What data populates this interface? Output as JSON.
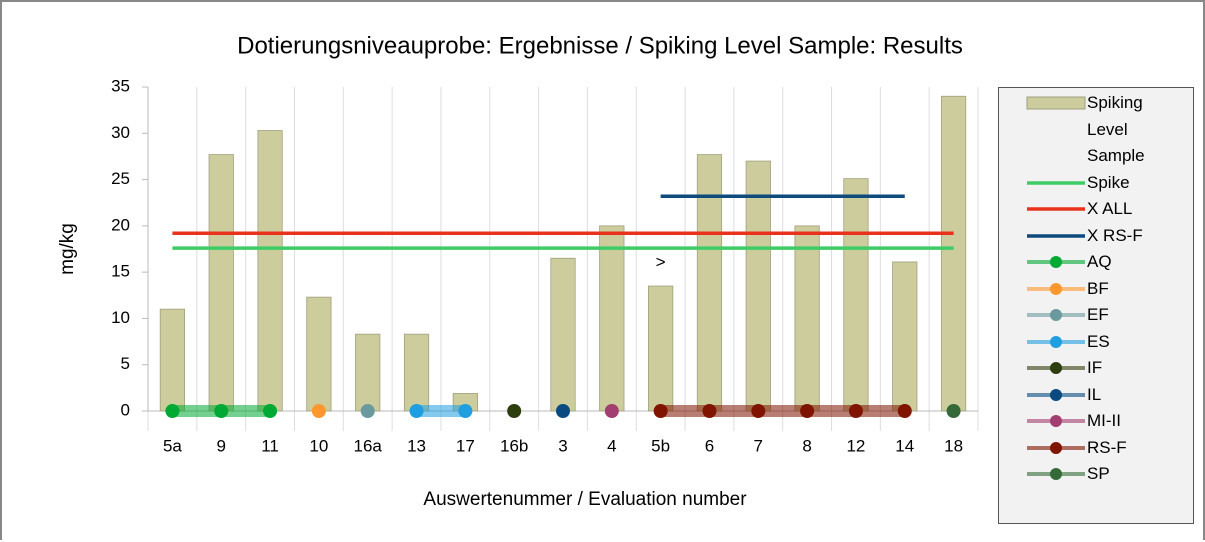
{
  "chart_data": {
    "type": "bar",
    "title": "Dotierungsniveauprobe: Ergebnisse / Spiking Level Sample: Results",
    "x_label": "Auswertenummer / Evaluation number",
    "y_label": "mg/kg",
    "categories": [
      "5a",
      "9",
      "11",
      "10",
      "16a",
      "13",
      "17",
      "16b",
      "3",
      "4",
      "5b",
      "6",
      "7",
      "8",
      "12",
      "14",
      "18"
    ],
    "ylim": [
      0,
      35
    ],
    "yticks": [
      0,
      5,
      10,
      15,
      20,
      25,
      30,
      35
    ],
    "grid": false,
    "legend": "right",
    "annotations": [
      {
        "text": ">",
        "category": 10,
        "y": 16
      }
    ],
    "series": [
      {
        "name": "Spiking Level Sample",
        "type": "bar",
        "color": "#cccc9c",
        "values": [
          11,
          27.7,
          30.3,
          12.3,
          8.3,
          8.3,
          1.9,
          null,
          16.5,
          20,
          13.5,
          27.7,
          27,
          20,
          25.1,
          16.1,
          34
        ]
      },
      {
        "name": "Spike",
        "type": "line",
        "color": "#3fcc66",
        "values": [
          17.6,
          17.6,
          17.6,
          17.6,
          17.6,
          17.6,
          17.6,
          17.6,
          17.6,
          17.6,
          17.6,
          17.6,
          17.6,
          17.6,
          17.6,
          17.6,
          17.6
        ]
      },
      {
        "name": "X ALL",
        "type": "line",
        "color": "#e8321c",
        "values": [
          19.2,
          19.2,
          19.2,
          19.2,
          19.2,
          19.2,
          19.2,
          19.2,
          19.2,
          19.2,
          19.2,
          19.2,
          19.2,
          19.2,
          19.2,
          19.2,
          19.2
        ]
      },
      {
        "name": "X RS-F",
        "type": "line",
        "color": "#0e4a7c",
        "values": [
          null,
          null,
          null,
          null,
          null,
          null,
          null,
          null,
          null,
          null,
          23.2,
          23.2,
          23.2,
          23.2,
          23.2,
          23.2,
          null
        ]
      },
      {
        "name": "AQ",
        "type": "marker-line",
        "color": "#00a933",
        "values": [
          0,
          0,
          0,
          null,
          null,
          null,
          null,
          null,
          null,
          null,
          null,
          null,
          null,
          null,
          null,
          null,
          null
        ]
      },
      {
        "name": "BF",
        "type": "marker-line",
        "color": "#ff972f",
        "values": [
          null,
          null,
          null,
          0,
          null,
          null,
          null,
          null,
          null,
          null,
          null,
          null,
          null,
          null,
          null,
          null,
          null
        ]
      },
      {
        "name": "EF",
        "type": "marker-line",
        "color": "#6b9a9e",
        "values": [
          null,
          null,
          null,
          null,
          0,
          null,
          null,
          null,
          null,
          null,
          null,
          null,
          null,
          null,
          null,
          null,
          null
        ]
      },
      {
        "name": "ES",
        "type": "marker-line",
        "color": "#1f9fe0",
        "values": [
          null,
          null,
          null,
          null,
          null,
          0,
          0,
          null,
          null,
          null,
          null,
          null,
          null,
          null,
          null,
          null,
          null
        ]
      },
      {
        "name": "IF",
        "type": "marker-line",
        "color": "#2e3d0e",
        "values": [
          null,
          null,
          null,
          null,
          null,
          null,
          null,
          0,
          null,
          null,
          null,
          null,
          null,
          null,
          null,
          null,
          null
        ]
      },
      {
        "name": "IL",
        "type": "marker-line",
        "color": "#0a4a80",
        "values": [
          null,
          null,
          null,
          null,
          null,
          null,
          null,
          null,
          0,
          null,
          null,
          null,
          null,
          null,
          null,
          null,
          null
        ]
      },
      {
        "name": "MI-II",
        "type": "marker-line",
        "color": "#a33e70",
        "values": [
          null,
          null,
          null,
          null,
          null,
          null,
          null,
          null,
          null,
          0,
          null,
          null,
          null,
          null,
          null,
          null,
          null
        ]
      },
      {
        "name": "RS-F",
        "type": "marker-line",
        "color": "#7f1400",
        "values": [
          null,
          null,
          null,
          null,
          null,
          null,
          null,
          null,
          null,
          null,
          0,
          0,
          0,
          0,
          0,
          0,
          null
        ]
      },
      {
        "name": "SP",
        "type": "marker-line",
        "color": "#356a38",
        "values": [
          null,
          null,
          null,
          null,
          null,
          null,
          null,
          null,
          null,
          null,
          null,
          null,
          null,
          null,
          null,
          null,
          0
        ]
      }
    ]
  }
}
